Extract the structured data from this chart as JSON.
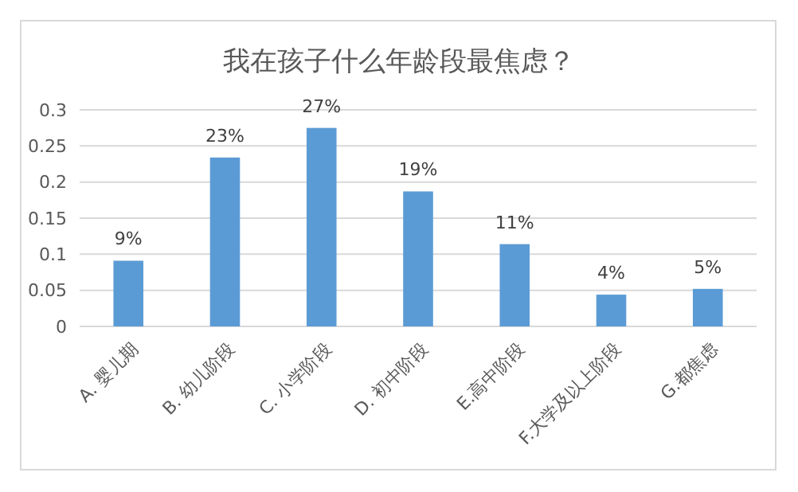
{
  "chart_data": {
    "type": "bar",
    "title": "我在孩子什么年龄段最焦虑？",
    "categories": [
      "A. 婴儿期",
      "B. 幼儿阶段",
      "C. 小学阶段",
      "D. 初中阶段",
      "E.高中阶段",
      "F.大学及以上阶段",
      "G.都焦虑"
    ],
    "values": [
      0.091,
      0.234,
      0.275,
      0.187,
      0.114,
      0.044,
      0.052
    ],
    "value_labels": [
      "9%",
      "23%",
      "27%",
      "19%",
      "11%",
      "4%",
      "5%"
    ],
    "color": "#5b9bd5",
    "ylim": [
      0,
      0.3
    ],
    "yticks": [
      0,
      0.05,
      {
        "value": 0.1,
        "label": "0.1"
      },
      0.15,
      {
        "value": 0.2,
        "label": "0.2"
      },
      0.25,
      {
        "value": 0.3,
        "label": "0.3"
      }
    ],
    "grid": "y"
  }
}
